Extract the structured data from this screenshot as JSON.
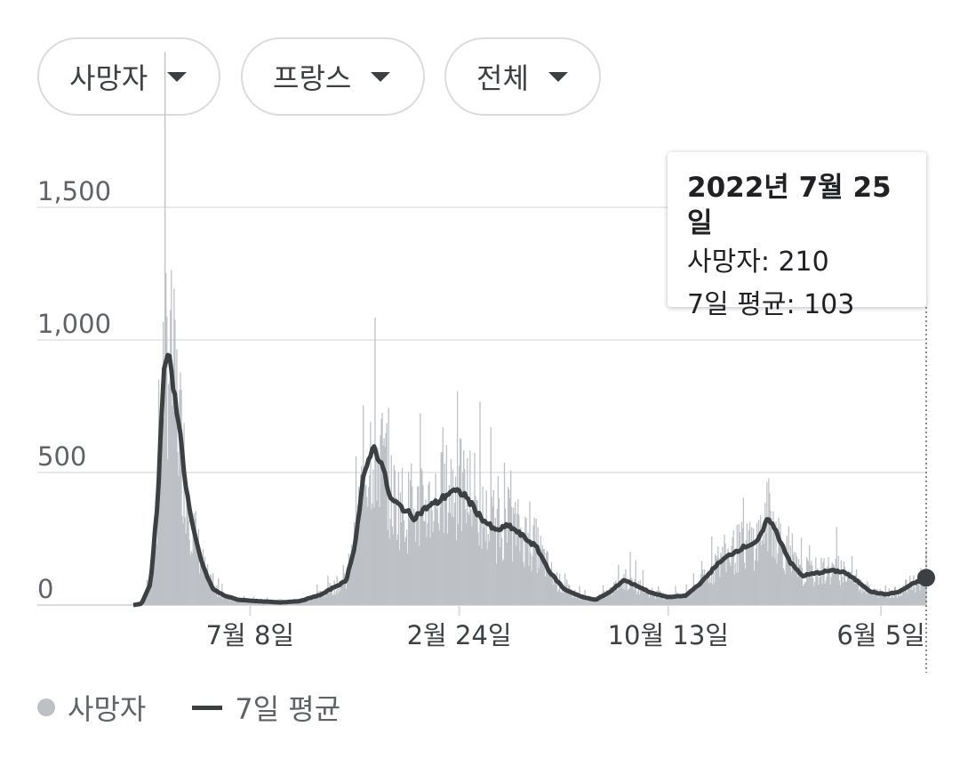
{
  "filters": {
    "metric": "사망자",
    "region": "프랑스",
    "period": "전체"
  },
  "tooltip": {
    "date": "2022년 7월 25일",
    "deaths_label": "사망자",
    "deaths_value": "210",
    "avg_label": "7일 평균",
    "avg_value": "103"
  },
  "legend": {
    "bars": "사망자",
    "line": "7일 평균"
  },
  "colors": {
    "bars": "#bdc1c6",
    "line": "#3c4043",
    "grid": "#e8eaed"
  },
  "chart_data": {
    "type": "bar",
    "y_ticks": [
      "0",
      "500",
      "1,000",
      "1,500"
    ],
    "ylim": [
      0,
      1600
    ],
    "x_tick_labels": [
      "7월 8일",
      "2월 24일",
      "10월 13일",
      "6월 5일"
    ],
    "x_tick_dates": [
      "2020-07-08",
      "2021-02-24",
      "2021-10-13",
      "2022-06-05"
    ],
    "x_start": "2020-03-01",
    "x_end": "2022-07-25",
    "series": [
      {
        "name": "7일 평균",
        "kind": "line",
        "points": [
          [
            "2020-03-01",
            0
          ],
          [
            "2020-03-10",
            5
          ],
          [
            "2020-03-20",
            80
          ],
          [
            "2020-03-28",
            400
          ],
          [
            "2020-04-03",
            850
          ],
          [
            "2020-04-08",
            960
          ],
          [
            "2020-04-14",
            820
          ],
          [
            "2020-04-20",
            700
          ],
          [
            "2020-04-28",
            450
          ],
          [
            "2020-05-05",
            300
          ],
          [
            "2020-05-14",
            180
          ],
          [
            "2020-05-20",
            120
          ],
          [
            "2020-05-28",
            60
          ],
          [
            "2020-06-10",
            35
          ],
          [
            "2020-06-25",
            20
          ],
          [
            "2020-07-15",
            15
          ],
          [
            "2020-08-10",
            10
          ],
          [
            "2020-09-01",
            15
          ],
          [
            "2020-09-25",
            40
          ],
          [
            "2020-10-10",
            70
          ],
          [
            "2020-10-22",
            90
          ],
          [
            "2020-11-01",
            230
          ],
          [
            "2020-11-10",
            470
          ],
          [
            "2020-11-20",
            600
          ],
          [
            "2020-11-30",
            540
          ],
          [
            "2020-12-10",
            400
          ],
          [
            "2020-12-22",
            370
          ],
          [
            "2021-01-05",
            330
          ],
          [
            "2021-01-20",
            370
          ],
          [
            "2021-02-01",
            390
          ],
          [
            "2021-02-15",
            430
          ],
          [
            "2021-03-01",
            420
          ],
          [
            "2021-03-20",
            330
          ],
          [
            "2021-04-05",
            280
          ],
          [
            "2021-04-20",
            300
          ],
          [
            "2021-05-05",
            260
          ],
          [
            "2021-05-20",
            220
          ],
          [
            "2021-06-05",
            120
          ],
          [
            "2021-06-20",
            60
          ],
          [
            "2021-07-10",
            30
          ],
          [
            "2021-07-25",
            20
          ],
          [
            "2021-08-10",
            50
          ],
          [
            "2021-08-25",
            95
          ],
          [
            "2021-09-10",
            70
          ],
          [
            "2021-09-25",
            45
          ],
          [
            "2021-10-13",
            30
          ],
          [
            "2021-11-01",
            35
          ],
          [
            "2021-11-20",
            90
          ],
          [
            "2021-12-05",
            150
          ],
          [
            "2021-12-20",
            190
          ],
          [
            "2022-01-05",
            220
          ],
          [
            "2022-01-20",
            240
          ],
          [
            "2022-02-01",
            330
          ],
          [
            "2022-02-10",
            270
          ],
          [
            "2022-02-25",
            160
          ],
          [
            "2022-03-10",
            110
          ],
          [
            "2022-03-25",
            120
          ],
          [
            "2022-04-10",
            130
          ],
          [
            "2022-04-25",
            125
          ],
          [
            "2022-05-10",
            90
          ],
          [
            "2022-05-25",
            50
          ],
          [
            "2022-06-10",
            40
          ],
          [
            "2022-06-25",
            50
          ],
          [
            "2022-07-10",
            80
          ],
          [
            "2022-07-25",
            103
          ]
        ]
      }
    ],
    "highlight": {
      "date": "2022-07-25",
      "value": 103,
      "daily": 210
    }
  }
}
